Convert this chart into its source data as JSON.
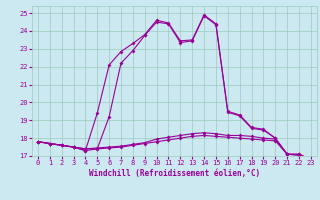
{
  "xlabel": "Windchill (Refroidissement éolien,°C)",
  "x": [
    0,
    1,
    2,
    3,
    4,
    5,
    6,
    7,
    8,
    9,
    10,
    11,
    12,
    13,
    14,
    15,
    16,
    17,
    18,
    19,
    20,
    21,
    22,
    23
  ],
  "line1": [
    17.8,
    17.7,
    17.6,
    17.5,
    17.4,
    17.4,
    17.45,
    17.5,
    17.6,
    17.7,
    17.8,
    17.9,
    18.0,
    18.1,
    18.15,
    18.1,
    18.05,
    18.0,
    17.95,
    17.9,
    17.85,
    17.1,
    17.05,
    16.75
  ],
  "line2": [
    17.8,
    17.7,
    17.6,
    17.5,
    17.4,
    17.45,
    17.5,
    17.55,
    17.65,
    17.75,
    17.95,
    18.05,
    18.15,
    18.25,
    18.3,
    18.25,
    18.15,
    18.15,
    18.1,
    18.0,
    17.95,
    17.1,
    17.05,
    16.75
  ],
  "line3": [
    17.8,
    17.7,
    17.6,
    17.5,
    17.3,
    19.4,
    22.1,
    22.85,
    23.3,
    23.8,
    24.6,
    24.45,
    23.45,
    23.5,
    24.9,
    24.4,
    19.5,
    19.3,
    18.6,
    18.5,
    18.0,
    17.1,
    17.1,
    16.8
  ],
  "line4": [
    17.8,
    17.7,
    17.6,
    17.5,
    17.3,
    17.4,
    19.2,
    22.2,
    22.9,
    23.75,
    24.5,
    24.4,
    23.35,
    23.45,
    24.85,
    24.35,
    19.45,
    19.25,
    18.55,
    18.45,
    18.0,
    17.1,
    17.1,
    16.8
  ],
  "line_color": "#990099",
  "bg_color": "#cce8f0",
  "grid_color": "#99ccbb",
  "ylim": [
    17.0,
    25.4
  ],
  "yticks": [
    17,
    18,
    19,
    20,
    21,
    22,
    23,
    24,
    25
  ],
  "xlim": [
    -0.5,
    23.5
  ],
  "xticks": [
    0,
    1,
    2,
    3,
    4,
    5,
    6,
    7,
    8,
    9,
    10,
    11,
    12,
    13,
    14,
    15,
    16,
    17,
    18,
    19,
    20,
    21,
    22,
    23
  ]
}
